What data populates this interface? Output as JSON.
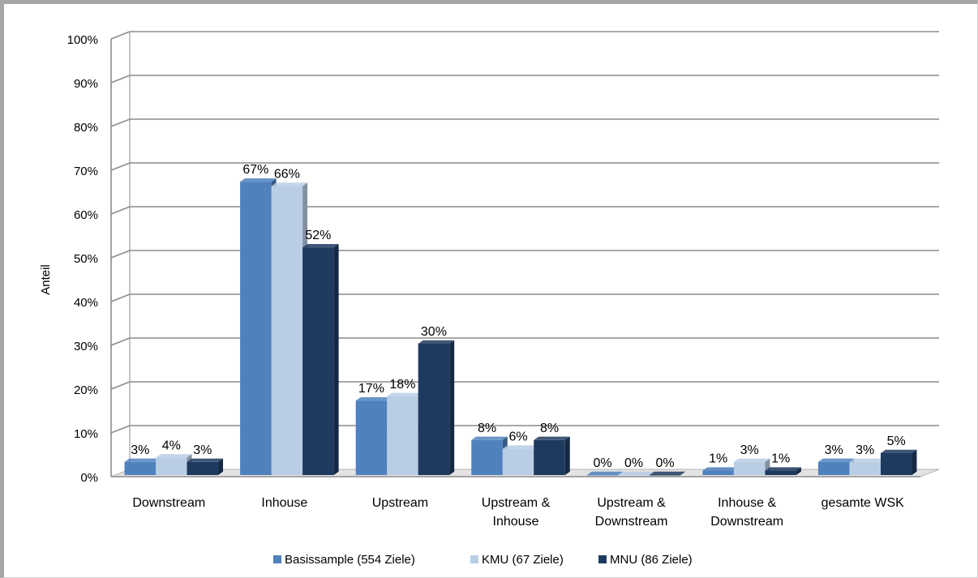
{
  "chart_data": {
    "type": "bar",
    "ylabel": "Anteil",
    "ylim": [
      0,
      100
    ],
    "yticks": [
      "0%",
      "10%",
      "20%",
      "30%",
      "40%",
      "50%",
      "60%",
      "70%",
      "80%",
      "90%",
      "100%"
    ],
    "categories": [
      [
        "Downstream"
      ],
      [
        "Inhouse"
      ],
      [
        "Upstream"
      ],
      [
        "Upstream &",
        "Inhouse"
      ],
      [
        "Upstream &",
        "Downstream"
      ],
      [
        "Inhouse &",
        "Downstream"
      ],
      [
        "gesamte WSK"
      ]
    ],
    "series": [
      {
        "name": "Basissample (554 Ziele)",
        "values": [
          3,
          67,
          17,
          8,
          0,
          1,
          3
        ],
        "labels": [
          "3%",
          "67%",
          "17%",
          "8%",
          "0%",
          "1%",
          "3%"
        ]
      },
      {
        "name": "KMU (67 Ziele)",
        "values": [
          4,
          66,
          18,
          6,
          0,
          3,
          3
        ],
        "labels": [
          "4%",
          "66%",
          "18%",
          "6%",
          "0%",
          "3%",
          "3%"
        ]
      },
      {
        "name": "MNU (86 Ziele)",
        "values": [
          3,
          52,
          30,
          8,
          0,
          1,
          5
        ],
        "labels": [
          "3%",
          "52%",
          "30%",
          "8%",
          "0%",
          "1%",
          "5%"
        ]
      }
    ],
    "grid": true,
    "legend": "bottom"
  },
  "colors": {
    "series": [
      "#4f81bd",
      "#b9cde5",
      "#1f3a5f"
    ],
    "grid": "#8c8c8c"
  }
}
